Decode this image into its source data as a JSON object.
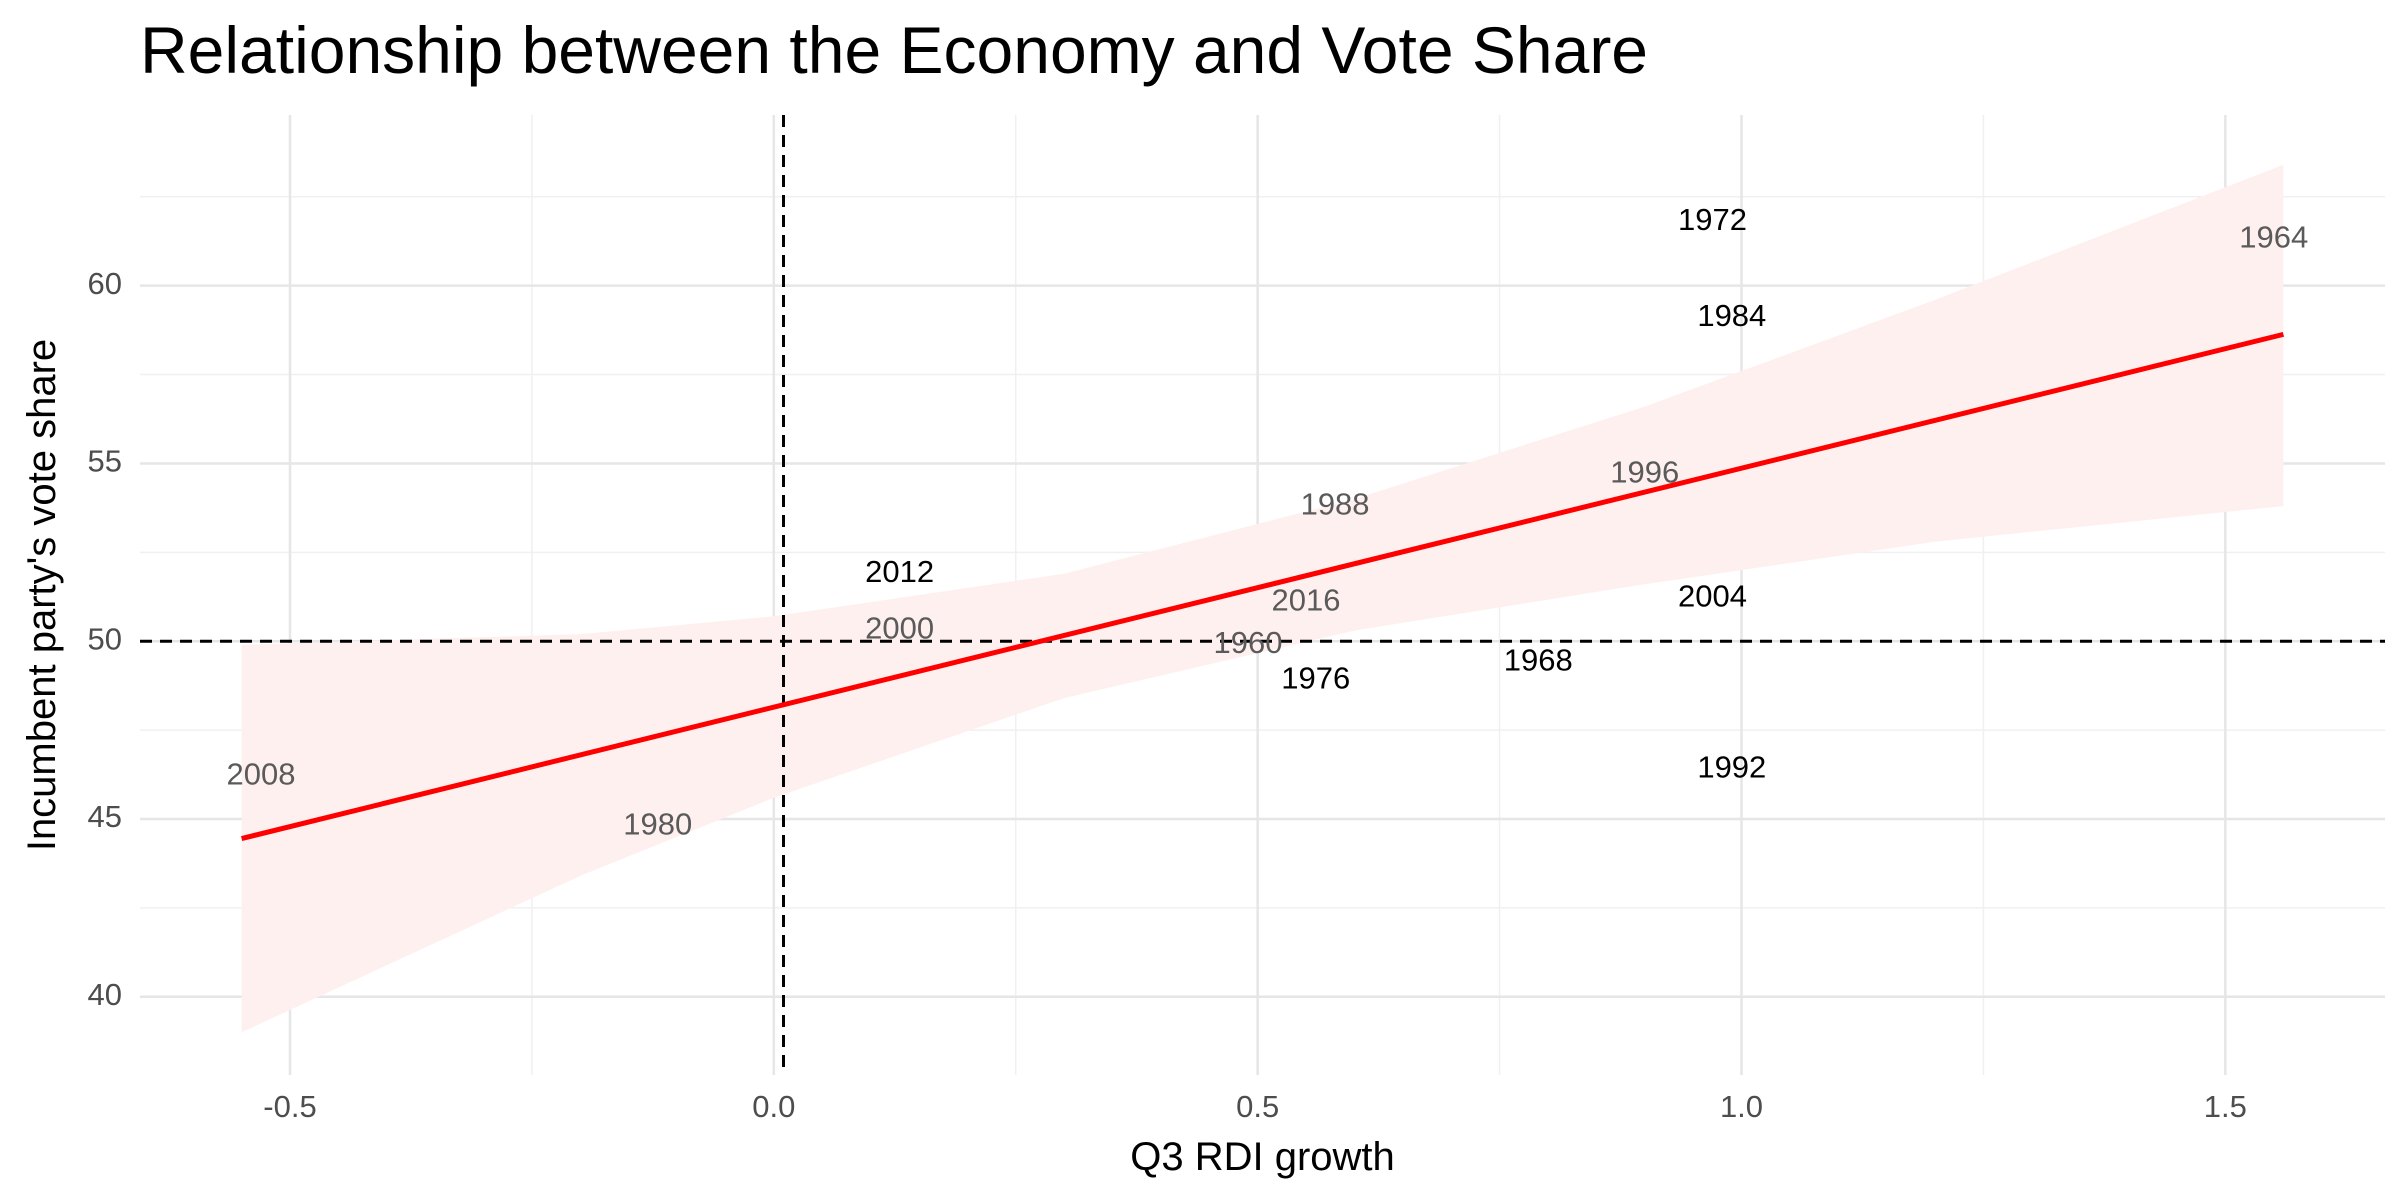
{
  "chart_data": {
    "type": "scatter",
    "title": "Relationship between the Economy and Vote Share",
    "xlabel": "Q3 RDI growth",
    "ylabel": "Incumbent party's vote share",
    "xlim": [
      -0.655,
      1.665
    ],
    "ylim": [
      37.8,
      64.8
    ],
    "x_ticks": [
      -0.5,
      0.0,
      0.5,
      1.0,
      1.5
    ],
    "x_tick_labels": [
      "-0.5",
      "0.0",
      "0.5",
      "1.0",
      "1.5"
    ],
    "y_ticks": [
      40,
      45,
      50,
      55,
      60
    ],
    "y_tick_labels": [
      "40",
      "45",
      "50",
      "55",
      "60"
    ],
    "grid": true,
    "legend": "none",
    "points": [
      {
        "label": "1964",
        "x": 1.55,
        "y": 61.3
      },
      {
        "label": "1972",
        "x": 0.97,
        "y": 61.8
      },
      {
        "label": "1984",
        "x": 0.99,
        "y": 59.1
      },
      {
        "label": "1996",
        "x": 0.9,
        "y": 54.7
      },
      {
        "label": "1988",
        "x": 0.58,
        "y": 53.8
      },
      {
        "label": "2012",
        "x": 0.13,
        "y": 51.9
      },
      {
        "label": "2004",
        "x": 0.97,
        "y": 51.2
      },
      {
        "label": "2016",
        "x": 0.55,
        "y": 51.1
      },
      {
        "label": "2000",
        "x": 0.13,
        "y": 50.3
      },
      {
        "label": "1960",
        "x": 0.49,
        "y": 49.9
      },
      {
        "label": "1968",
        "x": 0.79,
        "y": 49.4
      },
      {
        "label": "1976",
        "x": 0.56,
        "y": 48.9
      },
      {
        "label": "1992",
        "x": 0.99,
        "y": 46.4
      },
      {
        "label": "2008",
        "x": -0.53,
        "y": 46.2
      },
      {
        "label": "1980",
        "x": -0.12,
        "y": 44.8
      }
    ],
    "fit_line": {
      "x": [
        -0.55,
        1.56
      ],
      "y": [
        44.45,
        58.63
      ],
      "color": "#ff0000"
    },
    "confidence_band": {
      "x": [
        -0.55,
        -0.2,
        0.0,
        0.3,
        0.6,
        0.9,
        1.2,
        1.56
      ],
      "lower": [
        39.0,
        43.4,
        45.6,
        48.4,
        50.3,
        51.6,
        52.8,
        53.8
      ],
      "upper": [
        49.9,
        50.2,
        50.7,
        51.9,
        54.0,
        56.6,
        59.6,
        63.4
      ],
      "color": "#fff0f0"
    },
    "reference_lines": [
      {
        "axis": "x",
        "value": 0.01,
        "style": "dashed",
        "color": "#000000"
      },
      {
        "axis": "y",
        "value": 50,
        "style": "dashed",
        "color": "#000000"
      }
    ],
    "label_colors": {
      "dark": "#000000",
      "muted": "#5a5a5a"
    }
  }
}
